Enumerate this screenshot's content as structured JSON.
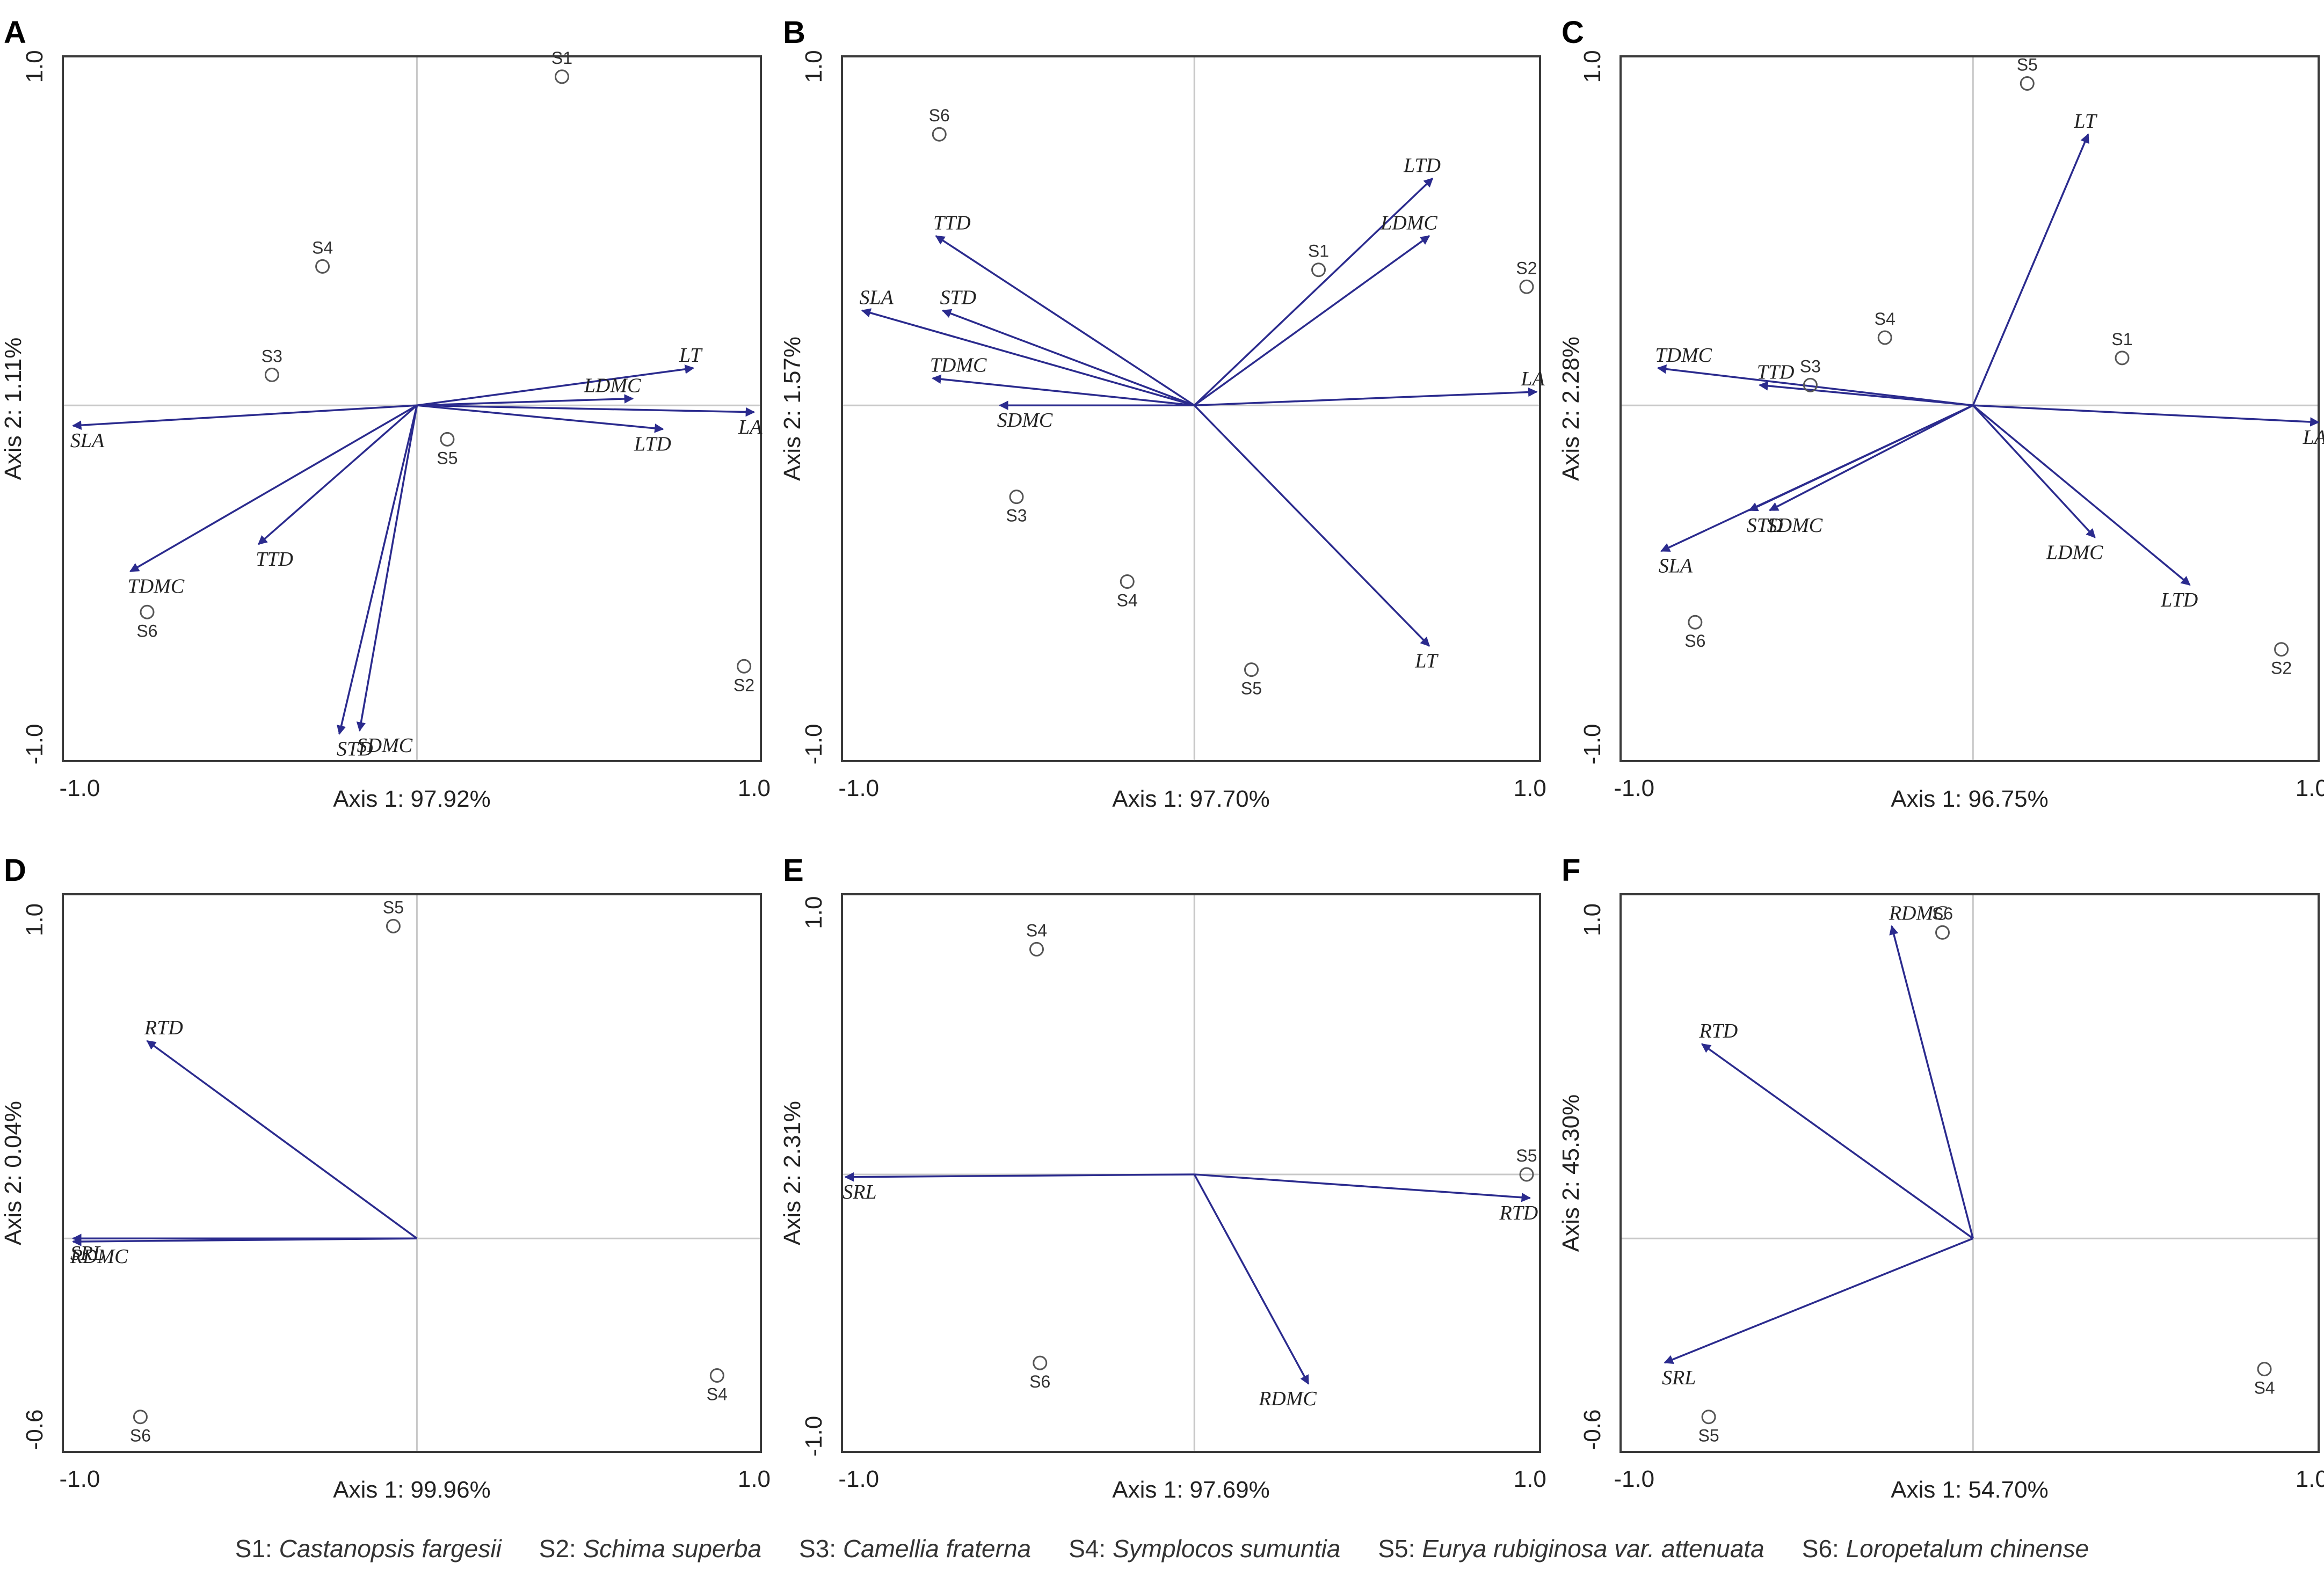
{
  "chart_data": [
    {
      "id": "A",
      "type": "scatter",
      "xlabel": "Axis 1: 97.92%",
      "ylabel": "Axis 2: 1.11%",
      "xlim": [
        -1.05,
        1.02
      ],
      "ylim": [
        -1.05,
        1.03
      ],
      "xticks": [
        "-1.0",
        "1.0"
      ],
      "yticks": [
        "-1.0",
        "1.0"
      ],
      "vectors": [
        {
          "name": "LT",
          "x": 0.82,
          "y": 0.11
        },
        {
          "name": "LDMC",
          "x": 0.64,
          "y": 0.02
        },
        {
          "name": "LTD",
          "x": 0.73,
          "y": -0.07
        },
        {
          "name": "LA",
          "x": 1.0,
          "y": -0.02
        },
        {
          "name": "SLA",
          "x": -1.02,
          "y": -0.06
        },
        {
          "name": "TTD",
          "x": -0.47,
          "y": -0.41
        },
        {
          "name": "TDMC",
          "x": -0.85,
          "y": -0.49
        },
        {
          "name": "STD",
          "x": -0.23,
          "y": -0.97
        },
        {
          "name": "SDMC",
          "x": -0.17,
          "y": -0.96
        }
      ],
      "points": [
        {
          "name": "S1",
          "x": 0.43,
          "y": 0.97
        },
        {
          "name": "S2",
          "x": 0.97,
          "y": -0.77
        },
        {
          "name": "S3",
          "x": -0.43,
          "y": 0.09
        },
        {
          "name": "S4",
          "x": -0.28,
          "y": 0.41
        },
        {
          "name": "S5",
          "x": 0.09,
          "y": -0.1
        },
        {
          "name": "S6",
          "x": -0.8,
          "y": -0.61
        }
      ]
    },
    {
      "id": "B",
      "type": "scatter",
      "xlabel": "Axis 1: 97.70%",
      "ylabel": "Axis 2: 1.57%",
      "xlim": [
        -1.05,
        1.03
      ],
      "ylim": [
        -1.05,
        1.03
      ],
      "xticks": [
        "-1.0",
        "1.0"
      ],
      "yticks": [
        "-1.0",
        "1.0"
      ],
      "vectors": [
        {
          "name": "LTD",
          "x": 0.71,
          "y": 0.67
        },
        {
          "name": "LDMC",
          "x": 0.7,
          "y": 0.5
        },
        {
          "name": "LA",
          "x": 1.02,
          "y": 0.04
        },
        {
          "name": "LT",
          "x": 0.7,
          "y": -0.71
        },
        {
          "name": "TTD",
          "x": -0.77,
          "y": 0.5
        },
        {
          "name": "SLA",
          "x": -0.99,
          "y": 0.28
        },
        {
          "name": "STD",
          "x": -0.75,
          "y": 0.28
        },
        {
          "name": "TDMC",
          "x": -0.78,
          "y": 0.08
        },
        {
          "name": "SDMC",
          "x": -0.58,
          "y": 0.0
        }
      ],
      "points": [
        {
          "name": "S1",
          "x": 0.37,
          "y": 0.4
        },
        {
          "name": "S2",
          "x": 0.99,
          "y": 0.35
        },
        {
          "name": "S3",
          "x": -0.53,
          "y": -0.27
        },
        {
          "name": "S4",
          "x": -0.2,
          "y": -0.52
        },
        {
          "name": "S5",
          "x": 0.17,
          "y": -0.78
        },
        {
          "name": "S6",
          "x": -0.76,
          "y": 0.8
        }
      ]
    },
    {
      "id": "C",
      "type": "scatter",
      "xlabel": "Axis 1: 96.75%",
      "ylabel": "Axis 2: 2.28%",
      "xlim": [
        -1.04,
        1.02
      ],
      "ylim": [
        -1.05,
        1.03
      ],
      "xticks": [
        "-1.0",
        "1.0"
      ],
      "yticks": [
        "-1.0",
        "1.0"
      ],
      "vectors": [
        {
          "name": "LT",
          "x": 0.34,
          "y": 0.8
        },
        {
          "name": "LA",
          "x": 1.02,
          "y": -0.05
        },
        {
          "name": "LDMC",
          "x": 0.36,
          "y": -0.39
        },
        {
          "name": "LTD",
          "x": 0.64,
          "y": -0.53
        },
        {
          "name": "TDMC",
          "x": -0.93,
          "y": 0.11
        },
        {
          "name": "TTD",
          "x": -0.63,
          "y": 0.06
        },
        {
          "name": "STD",
          "x": -0.66,
          "y": -0.31
        },
        {
          "name": "SDMC",
          "x": -0.6,
          "y": -0.31
        },
        {
          "name": "SLA",
          "x": -0.92,
          "y": -0.43
        }
      ],
      "points": [
        {
          "name": "S1",
          "x": 0.44,
          "y": 0.14
        },
        {
          "name": "S2",
          "x": 0.91,
          "y": -0.72
        },
        {
          "name": "S3",
          "x": -0.48,
          "y": 0.06
        },
        {
          "name": "S4",
          "x": -0.26,
          "y": 0.2
        },
        {
          "name": "S5",
          "x": 0.16,
          "y": 0.95
        },
        {
          "name": "S6",
          "x": -0.82,
          "y": -0.64
        }
      ]
    },
    {
      "id": "D",
      "type": "scatter",
      "xlabel": "Axis 1: 99.96%",
      "ylabel": "Axis 2: 0.04%",
      "xlim": [
        -1.05,
        1.02
      ],
      "ylim": [
        -0.67,
        1.08
      ],
      "xticks": [
        "-1.0",
        "1.0"
      ],
      "yticks": [
        "-0.6",
        "1.0"
      ],
      "vectors": [
        {
          "name": "RTD",
          "x": -0.8,
          "y": 0.62
        },
        {
          "name": "SRL",
          "x": -1.02,
          "y": 0.0
        },
        {
          "name": "RDMC",
          "x": -1.02,
          "y": -0.01
        }
      ],
      "points": [
        {
          "name": "S4",
          "x": 0.89,
          "y": -0.43
        },
        {
          "name": "S5",
          "x": -0.07,
          "y": 0.98
        },
        {
          "name": "S6",
          "x": -0.82,
          "y": -0.56
        }
      ]
    },
    {
      "id": "E",
      "type": "scatter",
      "xlabel": "Axis 1: 97.69%",
      "ylabel": "Axis 2: 2.31%",
      "xlim": [
        -1.05,
        1.03
      ],
      "ylim": [
        -1.06,
        1.07
      ],
      "xticks": [
        "-1.0",
        "1.0"
      ],
      "yticks": [
        "-1.0",
        "1.0"
      ],
      "vectors": [
        {
          "name": "SRL",
          "x": -1.04,
          "y": -0.01
        },
        {
          "name": "RTD",
          "x": 1.0,
          "y": -0.09
        },
        {
          "name": "RDMC",
          "x": 0.34,
          "y": -0.8
        }
      ],
      "points": [
        {
          "name": "S4",
          "x": -0.47,
          "y": 0.86
        },
        {
          "name": "S5",
          "x": 0.99,
          "y": 0.0
        },
        {
          "name": "S6",
          "x": -0.46,
          "y": -0.72
        }
      ]
    },
    {
      "id": "F",
      "type": "scatter",
      "xlabel": "Axis 1: 54.70%",
      "ylabel": "Axis 2: 45.30%",
      "xlim": [
        -1.04,
        1.02
      ],
      "ylim": [
        -0.67,
        1.08
      ],
      "xticks": [
        "-1.0",
        "1.0"
      ],
      "yticks": [
        "-0.6",
        "1.0"
      ],
      "vectors": [
        {
          "name": "RDMC",
          "x": -0.24,
          "y": 0.98
        },
        {
          "name": "RTD",
          "x": -0.8,
          "y": 0.61
        },
        {
          "name": "SRL",
          "x": -0.91,
          "y": -0.39
        }
      ],
      "points": [
        {
          "name": "S4",
          "x": 0.86,
          "y": -0.41
        },
        {
          "name": "S5",
          "x": -0.78,
          "y": -0.56
        },
        {
          "name": "S6",
          "x": -0.09,
          "y": 0.96
        }
      ]
    }
  ],
  "legend": [
    {
      "code": "S1:",
      "species": "Castanopsis fargesii"
    },
    {
      "code": "S2:",
      "species": "Schima superba"
    },
    {
      "code": "S3:",
      "species": "Camellia fraterna"
    },
    {
      "code": "S4:",
      "species": "Symplocos sumuntia"
    },
    {
      "code": "S5:",
      "species": "Eurya rubiginosa var. attenuata"
    },
    {
      "code": "S6:",
      "species": "Loropetalum chinense"
    }
  ],
  "colors": {
    "vector": "#2b2b8e",
    "point": "#555555",
    "frame": "#3a3a3a",
    "reference": "#c8c8c8"
  }
}
